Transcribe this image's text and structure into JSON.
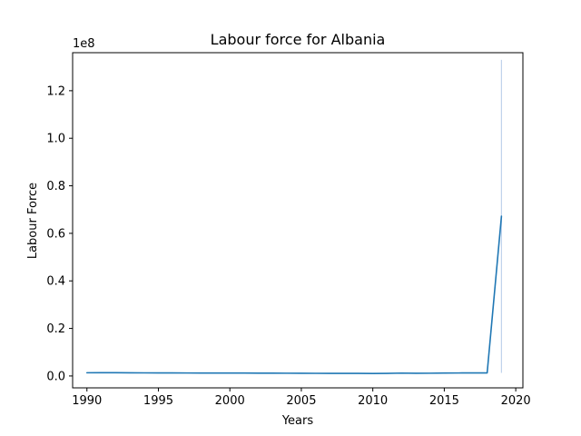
{
  "chart_data": {
    "type": "line",
    "title": "Labour force for Albania",
    "xlabel": "Years",
    "ylabel": "Labour Force",
    "y_offset_label": "1e8",
    "xlim": [
      1989,
      2020.5
    ],
    "ylim": [
      -0.05,
      1.36
    ],
    "x_ticks": [
      1990,
      1995,
      2000,
      2005,
      2010,
      2015,
      2020
    ],
    "y_ticks": [
      0.0,
      0.2,
      0.4,
      0.6,
      0.8,
      1.0,
      1.2
    ],
    "y_tick_labels": [
      "0.0",
      "0.2",
      "0.4",
      "0.6",
      "0.8",
      "1.0",
      "1.2"
    ],
    "grid": false,
    "series": [
      {
        "color": "#1f77b4",
        "x": [
          1990,
          1991,
          1992,
          1993,
          1994,
          1995,
          1996,
          1997,
          1998,
          1999,
          2000,
          2001,
          2002,
          2003,
          2004,
          2005,
          2006,
          2007,
          2008,
          2009,
          2010,
          2011,
          2012,
          2013,
          2014,
          2015,
          2016,
          2017,
          2018,
          2019
        ],
        "y": [
          0.0135,
          0.0137,
          0.0136,
          0.0134,
          0.0131,
          0.0128,
          0.0127,
          0.0126,
          0.0125,
          0.0124,
          0.0123,
          0.0122,
          0.012,
          0.0118,
          0.0116,
          0.0113,
          0.0111,
          0.0109,
          0.0108,
          0.0107,
          0.0106,
          0.011,
          0.0121,
          0.0112,
          0.0116,
          0.0124,
          0.0126,
          0.0128,
          0.0129,
          0.672
        ]
      }
    ],
    "error_band": {
      "color": "#aec7e8",
      "x": 2019,
      "y_low": 0.0129,
      "y_high": 1.33
    }
  }
}
